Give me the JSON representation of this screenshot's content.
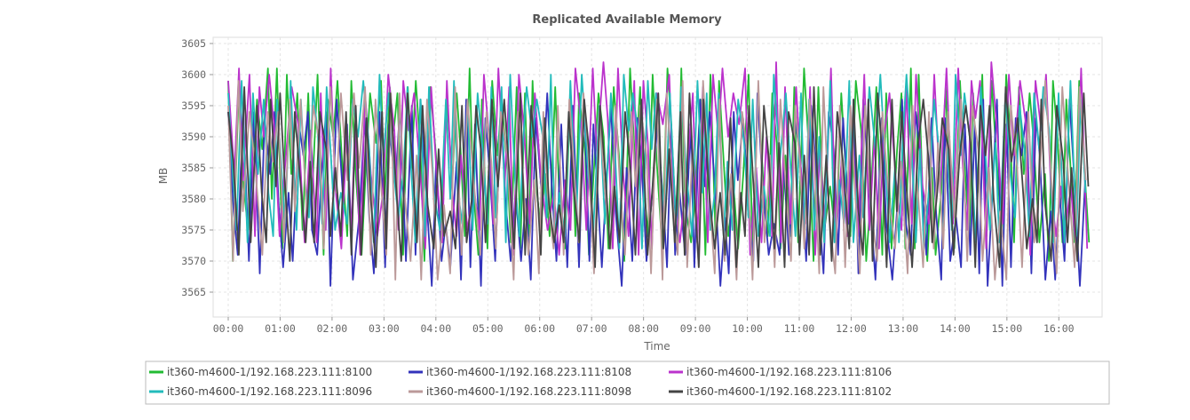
{
  "chart_data": {
    "type": "line",
    "title": "Replicated Available Memory",
    "xlabel": "Time",
    "ylabel": "MB",
    "ylim": [
      3561,
      3606
    ],
    "xlim": [
      "00:00",
      "16:50"
    ],
    "y_ticks": [
      3565,
      3570,
      3575,
      3580,
      3585,
      3590,
      3595,
      3600,
      3605
    ],
    "x_ticks": [
      "00:00",
      "01:00",
      "02:00",
      "03:00",
      "04:00",
      "05:00",
      "06:00",
      "07:00",
      "08:00",
      "09:00",
      "10:00",
      "11:00",
      "12:00",
      "13:00",
      "14:00",
      "15:00",
      "16:00"
    ],
    "grid": true,
    "legend_position": "bottom",
    "x_end": "16:35",
    "series": [
      {
        "name": "it360-m4600-1/192.168.223.111:8100",
        "color": "#22bb33",
        "low": 3570,
        "high": 3601,
        "phase": 0.0
      },
      {
        "name": "it360-m4600-1/192.168.223.111:8108",
        "color": "#3333bb",
        "low": 3566,
        "high": 3597,
        "phase": 0.35
      },
      {
        "name": "it360-m4600-1/192.168.223.111:8106",
        "color": "#bb33cc",
        "low": 3571,
        "high": 3602,
        "phase": 0.6
      },
      {
        "name": "it360-m4600-1/192.168.223.111:8096",
        "color": "#22bbbb",
        "low": 3572,
        "high": 3600,
        "phase": 0.15
      },
      {
        "name": "it360-m4600-1/192.168.223.111:8098",
        "color": "#bb9999",
        "low": 3567,
        "high": 3599,
        "phase": 0.8
      },
      {
        "name": "it360-m4600-1/192.168.223.111:8102",
        "color": "#444444",
        "low": 3569,
        "high": 3598,
        "phase": 0.5
      }
    ]
  }
}
